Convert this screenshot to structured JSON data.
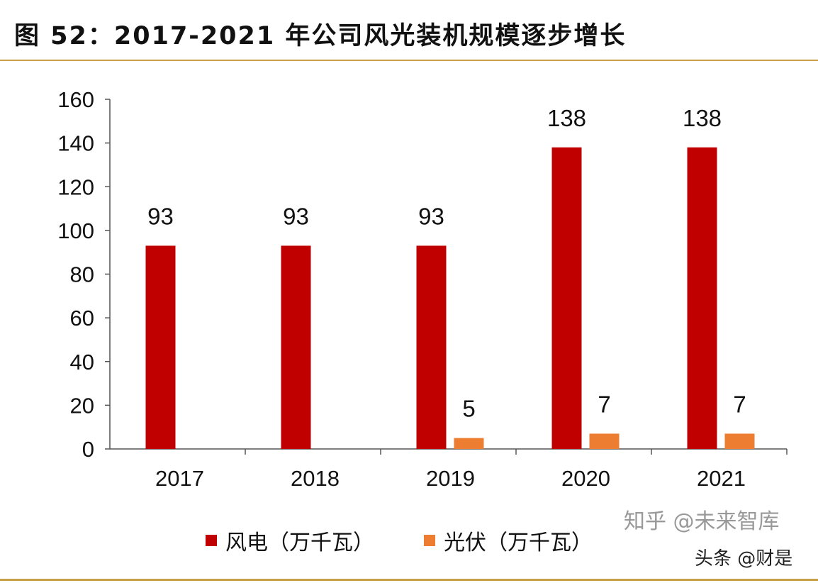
{
  "title": "图 52：2017-2021 年公司风光装机规模逐步增长",
  "watermarks": [
    "知乎 @未来智库",
    "头条 @财是"
  ],
  "chart_data": {
    "type": "bar",
    "title": "图 52：2017-2021 年公司风光装机规模逐步增长",
    "categories": [
      "2017",
      "2018",
      "2019",
      "2020",
      "2021"
    ],
    "series": [
      {
        "name": "风电（万千瓦）",
        "color": "#c00000",
        "values": [
          93,
          93,
          93,
          138,
          138
        ]
      },
      {
        "name": "光伏（万千瓦）",
        "color": "#ed7d31",
        "values": [
          null,
          null,
          5,
          7,
          7
        ]
      }
    ],
    "ylim": [
      0,
      160
    ],
    "yticks": [
      0,
      20,
      40,
      60,
      80,
      100,
      120,
      140,
      160
    ],
    "grid": false,
    "legend": "bottom",
    "data_labels": true
  }
}
